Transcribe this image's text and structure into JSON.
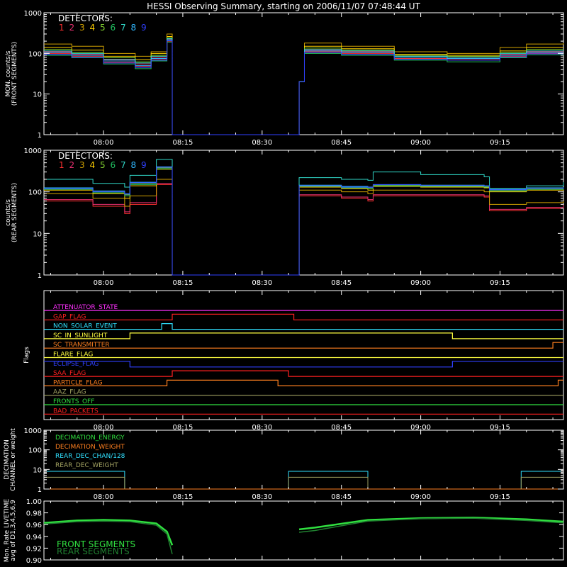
{
  "title": "HESSI Observing Summary, starting on 2006/11/07 07:48:44 UT",
  "colors": {
    "background": "#000000",
    "axes": "#ffffff",
    "detectors": [
      "#ff3030",
      "#e83070",
      "#d0a000",
      "#ffd000",
      "#80d030",
      "#20c060",
      "#30d8c8",
      "#30b8ff",
      "#3040ff"
    ]
  },
  "time_ticks": [
    "08:00",
    "08:15",
    "08:30",
    "08:45",
    "09:00",
    "09:15"
  ],
  "chart_data": [
    {
      "id": "front",
      "type": "line",
      "ylabel": [
        "MON. counts/s",
        "(FRONT SEGMENTS)"
      ],
      "yscale": "log",
      "ylim": [
        1,
        1000
      ],
      "ytick_labels": [
        "1",
        "10",
        "100",
        "1000"
      ],
      "legend_title": "DETECTORS:",
      "legend_labels": [
        "1",
        "2",
        "3",
        "4",
        "5",
        "6",
        "7",
        "8",
        "9"
      ],
      "x": [
        "07:48:44",
        "07:54",
        "08:00",
        "08:06",
        "08:09",
        "08:12",
        "08:13",
        "08:13",
        "08:37",
        "08:37",
        "08:38",
        "08:45",
        "08:55",
        "09:05",
        "09:15",
        "09:20",
        "09:27"
      ],
      "series": [
        {
          "detector": "1",
          "values": [
            100,
            85,
            60,
            48,
            70,
            200,
            1,
            1,
            1,
            20,
            110,
            100,
            75,
            70,
            85,
            100,
            100
          ]
        },
        {
          "detector": "2",
          "values": [
            110,
            95,
            70,
            55,
            80,
            220,
            1,
            1,
            1,
            20,
            120,
            110,
            85,
            80,
            95,
            110,
            110
          ]
        },
        {
          "detector": "3",
          "values": [
            170,
            150,
            100,
            85,
            110,
            300,
            1,
            1,
            1,
            20,
            180,
            150,
            110,
            100,
            140,
            170,
            180
          ]
        },
        {
          "detector": "4",
          "values": [
            140,
            120,
            85,
            70,
            100,
            260,
            1,
            1,
            1,
            20,
            150,
            130,
            95,
            90,
            115,
            140,
            140
          ]
        },
        {
          "detector": "5",
          "values": [
            125,
            105,
            78,
            62,
            90,
            240,
            1,
            1,
            1,
            20,
            135,
            120,
            90,
            85,
            105,
            125,
            125
          ]
        },
        {
          "detector": "6",
          "values": [
            90,
            78,
            55,
            42,
            65,
            190,
            1,
            1,
            1,
            20,
            100,
            90,
            68,
            62,
            78,
            92,
            95
          ]
        },
        {
          "detector": "7",
          "values": [
            115,
            100,
            72,
            58,
            85,
            230,
            1,
            1,
            1,
            20,
            125,
            115,
            85,
            80,
            100,
            115,
            115
          ]
        },
        {
          "detector": "8",
          "values": [
            105,
            90,
            65,
            50,
            75,
            215,
            1,
            1,
            1,
            20,
            115,
            105,
            80,
            75,
            90,
            105,
            105
          ]
        },
        {
          "detector": "9",
          "values": [
            95,
            80,
            58,
            45,
            68,
            205,
            1,
            1,
            1,
            20,
            105,
            95,
            72,
            68,
            82,
            98,
            98
          ]
        }
      ]
    },
    {
      "id": "rear",
      "type": "line",
      "ylabel": [
        "counts/s",
        "(REAR SEGMENTS)"
      ],
      "yscale": "log",
      "ylim": [
        1,
        1000
      ],
      "ytick_labels": [
        "1",
        "10",
        "100",
        "1000"
      ],
      "legend_title": "DETECTORS:",
      "legend_labels": [
        "1",
        "2",
        "3",
        "4",
        "5",
        "6",
        "7",
        "8",
        "9"
      ],
      "x": [
        "07:48:44",
        "07:58",
        "08:04",
        "08:05",
        "08:10",
        "08:13",
        "08:13",
        "08:37",
        "08:37",
        "08:45",
        "08:50",
        "08:51",
        "09:00",
        "09:12",
        "09:13",
        "09:20",
        "09:27"
      ],
      "series": [
        {
          "detector": "1",
          "values": [
            60,
            45,
            30,
            50,
            150,
            1,
            1,
            1,
            80,
            70,
            60,
            80,
            80,
            75,
            35,
            40,
            45
          ]
        },
        {
          "detector": "2",
          "values": [
            65,
            50,
            33,
            55,
            160,
            1,
            1,
            1,
            85,
            75,
            65,
            85,
            85,
            80,
            38,
            42,
            48
          ]
        },
        {
          "detector": "3",
          "values": [
            90,
            70,
            45,
            80,
            200,
            1,
            1,
            1,
            110,
            100,
            90,
            110,
            110,
            100,
            50,
            55,
            60
          ]
        },
        {
          "detector": "4",
          "values": [
            110,
            90,
            70,
            140,
            350,
            1,
            1,
            1,
            130,
            120,
            110,
            135,
            130,
            125,
            100,
            110,
            115
          ]
        },
        {
          "detector": "5",
          "values": [
            120,
            100,
            85,
            160,
            380,
            1,
            1,
            1,
            140,
            130,
            125,
            145,
            140,
            135,
            110,
            120,
            125
          ]
        },
        {
          "detector": "6",
          "values": [
            115,
            95,
            80,
            150,
            360,
            1,
            1,
            1,
            135,
            125,
            120,
            140,
            135,
            130,
            105,
            115,
            120
          ]
        },
        {
          "detector": "7",
          "values": [
            200,
            160,
            130,
            250,
            600,
            1,
            1,
            1,
            220,
            200,
            190,
            300,
            260,
            230,
            120,
            140,
            170
          ]
        },
        {
          "detector": "8",
          "values": [
            125,
            105,
            90,
            170,
            400,
            1,
            1,
            1,
            145,
            135,
            130,
            150,
            145,
            140,
            115,
            125,
            130
          ]
        },
        {
          "detector": "9",
          "values": [
            120,
            100,
            88,
            165,
            390,
            1,
            1,
            1,
            140,
            130,
            128,
            148,
            142,
            138,
            112,
            122,
            128
          ]
        }
      ]
    },
    {
      "id": "flags",
      "type": "step",
      "ylabel": [
        "Flags"
      ],
      "flags": [
        {
          "name": "ATTENUATOR_STATE",
          "color": "#ff30ff",
          "steps": [
            [
              "07:48:44",
              0
            ]
          ]
        },
        {
          "name": "GAP_FLAG",
          "color": "#ff2020",
          "steps": [
            [
              "07:48:44",
              0
            ],
            [
              "08:13",
              1
            ],
            [
              "08:36",
              0
            ]
          ]
        },
        {
          "name": "NON_SOLAR_EVENT",
          "color": "#30e0ff",
          "steps": [
            [
              "07:48:44",
              0
            ],
            [
              "08:11",
              1
            ],
            [
              "08:13",
              0
            ]
          ]
        },
        {
          "name": "SC_IN_SUNLIGHT",
          "color": "#ffff40",
          "steps": [
            [
              "07:48:44",
              0
            ],
            [
              "08:05",
              1
            ],
            [
              "09:06",
              0
            ]
          ]
        },
        {
          "name": "SC_TRANSMITTER",
          "color": "#ff8020",
          "steps": [
            [
              "07:48:44",
              0
            ],
            [
              "09:25",
              1
            ]
          ]
        },
        {
          "name": "FLARE_FLAG",
          "color": "#ffff40",
          "steps": [
            [
              "07:48:44",
              0
            ]
          ]
        },
        {
          "name": "ECLIPSE_FLAG",
          "color": "#3040ff",
          "steps": [
            [
              "07:48:44",
              1
            ],
            [
              "08:05",
              0
            ],
            [
              "09:06",
              1
            ]
          ]
        },
        {
          "name": "SAA_FLAG",
          "color": "#ff2020",
          "steps": [
            [
              "07:48:44",
              0
            ],
            [
              "08:13",
              1
            ],
            [
              "08:35",
              0
            ]
          ]
        },
        {
          "name": "PARTICLE_FLAG",
          "color": "#ff8020",
          "steps": [
            [
              "07:48:44",
              0
            ],
            [
              "08:12",
              1
            ],
            [
              "08:33",
              0
            ],
            [
              "09:26",
              1
            ]
          ]
        },
        {
          "name": "AAZ_FLAG",
          "color": "#a0a060",
          "steps": [
            [
              "07:48:44",
              0
            ]
          ]
        },
        {
          "name": "FRONTS_OFF",
          "color": "#30e040",
          "steps": [
            [
              "07:48:44",
              0
            ]
          ]
        },
        {
          "name": "BAD_PACKETS",
          "color": "#ff2020",
          "steps": [
            [
              "07:48:44",
              0
            ]
          ]
        }
      ]
    },
    {
      "id": "decimation",
      "type": "step",
      "ylabel": [
        "DECIMATION",
        "CHANNEL or weight"
      ],
      "yscale": "log",
      "ylim": [
        1,
        1000
      ],
      "ytick_labels": [
        "1",
        "10",
        "100",
        "1000"
      ],
      "legend": [
        {
          "name": "DECIMATION_ENERGY",
          "color": "#30e040"
        },
        {
          "name": "DECIMATION_WEIGHT",
          "color": "#ff8020"
        },
        {
          "name": "REAR_DEC_CHAN/128",
          "color": "#30e0ff"
        },
        {
          "name": "REAR_DEC_WEIGHT",
          "color": "#a0a060"
        }
      ],
      "series": [
        {
          "name": "REAR_DEC_CHAN/128",
          "color": "#30e0ff",
          "steps": [
            [
              "07:48:44",
              8
            ],
            [
              "08:04",
              1
            ],
            [
              "08:35",
              8
            ],
            [
              "08:50",
              1
            ],
            [
              "09:19",
              8
            ]
          ]
        },
        {
          "name": "REAR_DEC_WEIGHT",
          "color": "#a0a060",
          "steps": [
            [
              "07:48:44",
              4
            ],
            [
              "08:04",
              1
            ],
            [
              "08:35",
              4
            ],
            [
              "08:50",
              1
            ],
            [
              "09:19",
              4
            ]
          ]
        },
        {
          "name": "DECIMATION_ENERGY",
          "color": "#30e040",
          "steps": [
            [
              "07:48:44",
              1
            ]
          ]
        },
        {
          "name": "DECIMATION_WEIGHT",
          "color": "#ff8020",
          "steps": [
            [
              "07:48:44",
              1
            ]
          ]
        }
      ]
    },
    {
      "id": "livetime",
      "type": "line",
      "ylabel": [
        "Mon. Rate LIVETIME",
        "avg of D1,3,4,5,6,9"
      ],
      "ylim": [
        0.9,
        1.0
      ],
      "ytick_labels": [
        "0.90",
        "0.92",
        "0.94",
        "0.96",
        "0.98",
        "1.00"
      ],
      "legend": [
        {
          "name": "FRONT SEGMENTS",
          "color": "#30e040"
        },
        {
          "name": "REAR SEGMENTS",
          "color": "#208030"
        }
      ],
      "x": [
        "07:48:44",
        "07:55",
        "08:00",
        "08:05",
        "08:10",
        "08:12",
        "08:13",
        "08:37",
        "08:40",
        "08:50",
        "09:00",
        "09:10",
        "09:20",
        "09:27"
      ],
      "series": [
        {
          "name": "FRONT SEGMENTS",
          "values": [
            0.963,
            0.967,
            0.968,
            0.967,
            0.962,
            0.948,
            0.925,
            0.952,
            0.955,
            0.968,
            0.971,
            0.972,
            0.969,
            0.965
          ]
        },
        {
          "name": "REAR SEGMENTS",
          "values": [
            0.961,
            0.965,
            0.966,
            0.965,
            0.959,
            0.944,
            0.91,
            0.947,
            0.95,
            0.966,
            0.97,
            0.971,
            0.967,
            0.963
          ]
        }
      ]
    }
  ]
}
